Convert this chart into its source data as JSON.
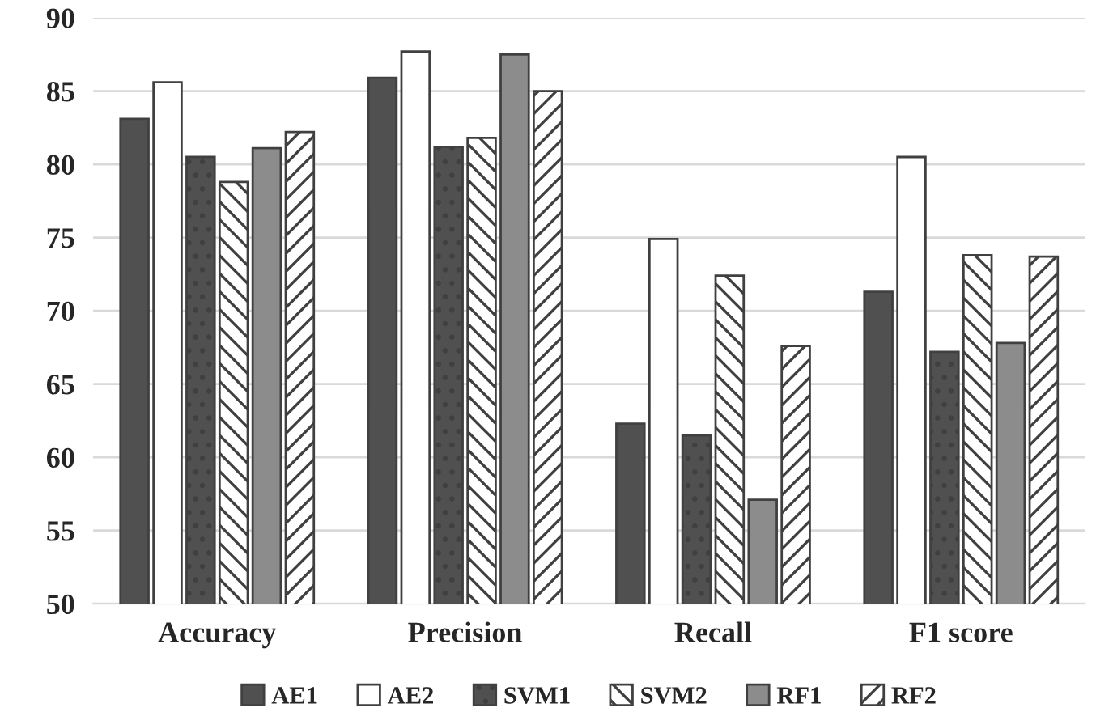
{
  "chart_data": {
    "type": "bar",
    "categories": [
      "Accuracy",
      "Precision",
      "Recall",
      "F1 score"
    ],
    "series": [
      {
        "name": "AE1",
        "color": "#505050",
        "values": [
          83.1,
          85.9,
          62.3,
          71.3
        ]
      },
      {
        "name": "AE2",
        "color": "#ffffff",
        "values": [
          85.6,
          87.7,
          74.9,
          80.5
        ]
      },
      {
        "name": "SVM1",
        "color": "#505050",
        "values": [
          80.5,
          81.2,
          61.5,
          67.2
        ]
      },
      {
        "name": "SVM2",
        "color": "#404040",
        "values": [
          78.8,
          81.8,
          72.4,
          73.8
        ]
      },
      {
        "name": "RF1",
        "color": "#8c8c8c",
        "values": [
          81.1,
          87.5,
          57.1,
          67.8
        ]
      },
      {
        "name": "RF2",
        "color": "#404040",
        "values": [
          82.2,
          85.0,
          67.6,
          73.7
        ]
      }
    ],
    "ylim": [
      50,
      90
    ],
    "yticks": [
      50,
      55,
      60,
      65,
      70,
      75,
      80,
      85,
      90
    ],
    "grid": "y",
    "legend": "bottom"
  }
}
